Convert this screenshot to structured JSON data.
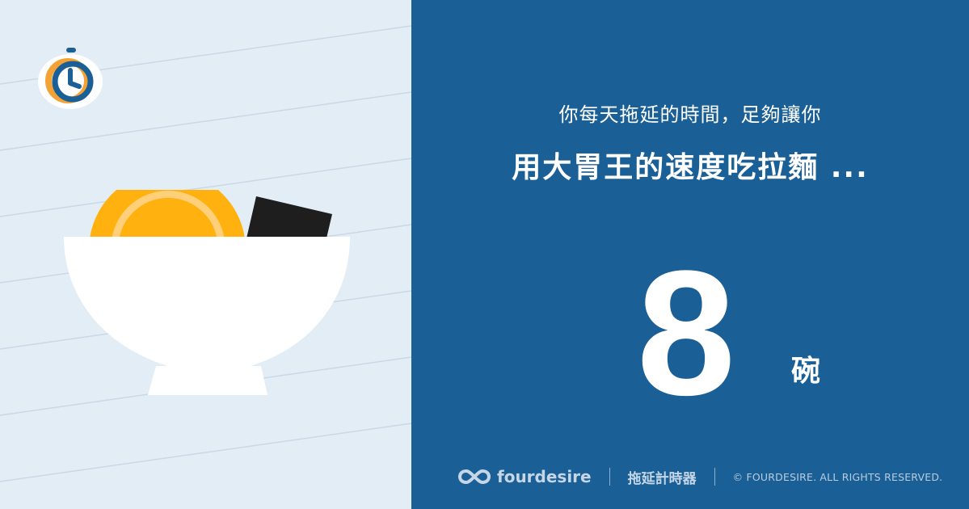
{
  "illustration": {
    "logo_icon": "stopwatch-icon",
    "art_icon": "noodle-bowl-icon"
  },
  "result": {
    "subtitle": "你每天拖延的時間，足夠讓你",
    "headline": "用大胃王的速度吃拉麵 ...",
    "value": "8",
    "unit": "碗"
  },
  "footer": {
    "brand_icon": "infinity-icon",
    "brand": "fourdesire",
    "product": "拖延計時器",
    "copyright": "© FOURDESIRE. ALL RIGHTS RESERVED."
  },
  "colors": {
    "left_bg": "#e3edf5",
    "right_bg": "#1a5f96",
    "noodle": "#ffb20f",
    "nori": "#1e1e1e",
    "bowl": "#ffffff",
    "logo_orange": "#f4a233",
    "logo_blue": "#1a5f96"
  }
}
